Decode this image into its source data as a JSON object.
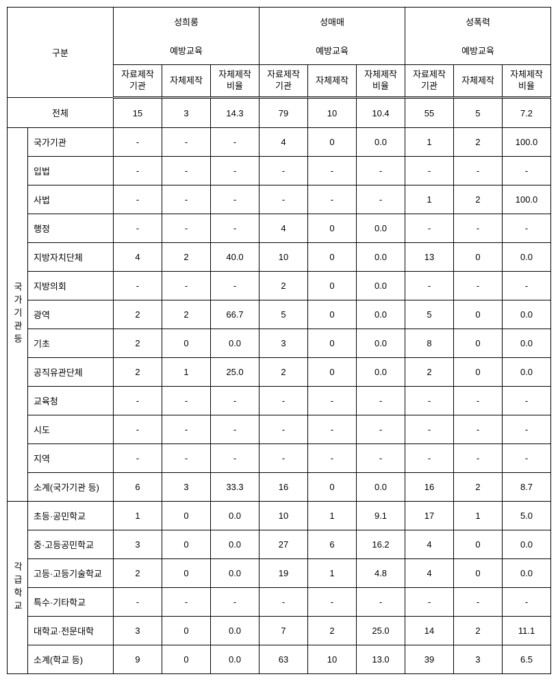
{
  "headers": {
    "gubun": "구분",
    "groups": [
      {
        "title_l1": "성희롱",
        "title_l2": "예방교육"
      },
      {
        "title_l1": "성매매",
        "title_l2": "예방교육"
      },
      {
        "title_l1": "성폭력",
        "title_l2": "예방교육"
      }
    ],
    "sub": [
      {
        "l1": "자료제작",
        "l2": "기관"
      },
      {
        "l1": "자체제작",
        "l2": ""
      },
      {
        "l1": "자체제작",
        "l2": "비율"
      }
    ]
  },
  "total": {
    "label": "전체",
    "vals": [
      "15",
      "3",
      "14.3",
      "79",
      "10",
      "10.4",
      "55",
      "5",
      "7.2"
    ]
  },
  "section1": {
    "vlabel": "국가기관등",
    "rows": [
      {
        "label": "국가기관",
        "vals": [
          "-",
          "-",
          "-",
          "4",
          "0",
          "0.0",
          "1",
          "2",
          "100.0"
        ]
      },
      {
        "label": "입법",
        "vals": [
          "-",
          "-",
          "-",
          "-",
          "-",
          "-",
          "-",
          "-",
          "-"
        ]
      },
      {
        "label": "사법",
        "vals": [
          "-",
          "-",
          "-",
          "-",
          "-",
          "-",
          "1",
          "2",
          "100.0"
        ]
      },
      {
        "label": "행정",
        "vals": [
          "-",
          "-",
          "-",
          "4",
          "0",
          "0.0",
          "-",
          "-",
          "-"
        ]
      },
      {
        "label": "지방자치단체",
        "vals": [
          "4",
          "2",
          "40.0",
          "10",
          "0",
          "0.0",
          "13",
          "0",
          "0.0"
        ]
      },
      {
        "label": "지방의회",
        "vals": [
          "-",
          "-",
          "-",
          "2",
          "0",
          "0.0",
          "-",
          "-",
          "-"
        ]
      },
      {
        "label": "광역",
        "vals": [
          "2",
          "2",
          "66.7",
          "5",
          "0",
          "0.0",
          "5",
          "0",
          "0.0"
        ]
      },
      {
        "label": "기초",
        "vals": [
          "2",
          "0",
          "0.0",
          "3",
          "0",
          "0.0",
          "8",
          "0",
          "0.0"
        ]
      },
      {
        "label": "공직유관단체",
        "vals": [
          "2",
          "1",
          "25.0",
          "2",
          "0",
          "0.0",
          "2",
          "0",
          "0.0"
        ]
      },
      {
        "label": "교육청",
        "vals": [
          "-",
          "-",
          "-",
          "-",
          "-",
          "-",
          "-",
          "-",
          "-"
        ]
      },
      {
        "label": "시도",
        "vals": [
          "-",
          "-",
          "-",
          "-",
          "-",
          "-",
          "-",
          "-",
          "-"
        ]
      },
      {
        "label": "지역",
        "vals": [
          "-",
          "-",
          "-",
          "-",
          "-",
          "-",
          "-",
          "-",
          "-"
        ]
      },
      {
        "label": "소계(국가기관 등)",
        "vals": [
          "6",
          "3",
          "33.3",
          "16",
          "0",
          "0.0",
          "16",
          "2",
          "8.7"
        ]
      }
    ]
  },
  "section2": {
    "vlabel": "각급학교",
    "rows": [
      {
        "label": "초등·공민학교",
        "vals": [
          "1",
          "0",
          "0.0",
          "10",
          "1",
          "9.1",
          "17",
          "1",
          "5.0"
        ]
      },
      {
        "label": "중·고등공민학교",
        "vals": [
          "3",
          "0",
          "0.0",
          "27",
          "6",
          "16.2",
          "4",
          "0",
          "0.0"
        ]
      },
      {
        "label": "고등·고등기술학교",
        "vals": [
          "2",
          "0",
          "0.0",
          "19",
          "1",
          "4.8",
          "4",
          "0",
          "0.0"
        ]
      },
      {
        "label": "특수·기타학교",
        "vals": [
          "-",
          "-",
          "-",
          "-",
          "-",
          "-",
          "-",
          "-",
          "-"
        ]
      },
      {
        "label": "대학교·전문대학",
        "vals": [
          "3",
          "0",
          "0.0",
          "7",
          "2",
          "25.0",
          "14",
          "2",
          "11.1"
        ]
      },
      {
        "label": "소계(학교 등)",
        "vals": [
          "9",
          "0",
          "0.0",
          "63",
          "10",
          "13.0",
          "39",
          "3",
          "6.5"
        ]
      }
    ]
  }
}
